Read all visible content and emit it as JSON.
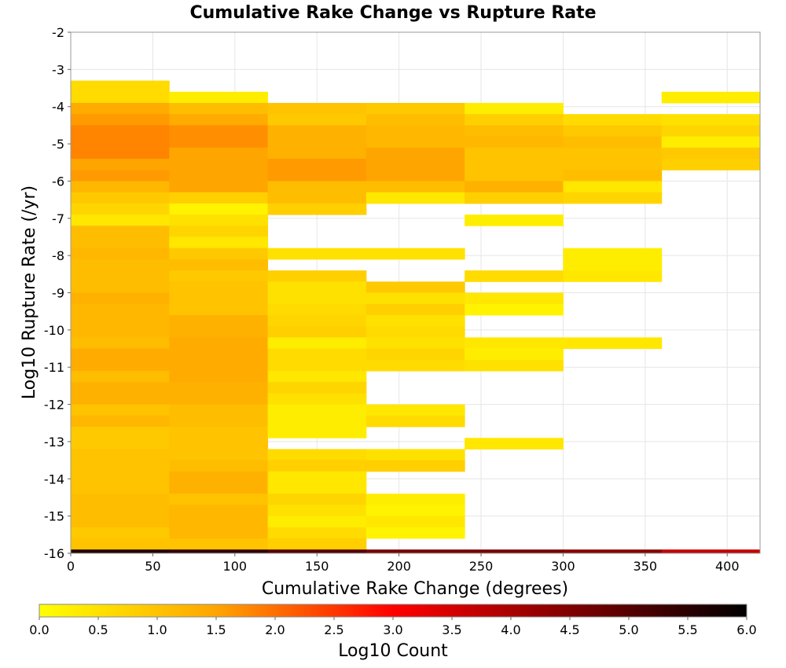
{
  "chart_data": {
    "type": "heatmap",
    "title": "Cumulative Rake Change vs Rupture Rate",
    "xlabel": "Cumulative Rake Change (degrees)",
    "ylabel": "Log10 Rupture Rate (/yr)",
    "xlim": [
      0,
      420
    ],
    "ylim": [
      -16,
      -2
    ],
    "x_ticks": [
      "0",
      "50",
      "100",
      "150",
      "200",
      "250",
      "300",
      "350",
      "400"
    ],
    "y_ticks": [
      "-2",
      "-3",
      "-4",
      "-5",
      "-6",
      "-7",
      "-8",
      "-9",
      "-10",
      "-11",
      "-12",
      "-13",
      "-14",
      "-15",
      "-16"
    ],
    "grid": true,
    "x_bin_width": 60,
    "y_bin_height": 0.3,
    "colorbar": {
      "label": "Log10 Count",
      "range": [
        0,
        6
      ],
      "ticks": [
        "0.0",
        "0.5",
        "1.0",
        "1.5",
        "2.0",
        "2.5",
        "3.0",
        "3.5",
        "4.0",
        "4.5",
        "5.0",
        "5.5",
        "6.0"
      ],
      "colors": [
        "#ffff00",
        "#ffa500",
        "#ff0000",
        "#000000"
      ]
    },
    "columns": [
      {
        "x0": 0,
        "cells": [
          [
            -3.9,
            -3.3,
            0.6
          ],
          [
            -4.2,
            -3.9,
            1.4
          ],
          [
            -4.5,
            -4.2,
            1.6
          ],
          [
            -5.4,
            -4.5,
            1.8
          ],
          [
            -5.7,
            -5.4,
            1.5
          ],
          [
            -6.0,
            -5.7,
            1.6
          ],
          [
            -6.3,
            -6.0,
            1.2
          ],
          [
            -6.6,
            -6.3,
            0.9
          ],
          [
            -6.9,
            -6.6,
            0.7
          ],
          [
            -7.2,
            -6.9,
            0.4
          ],
          [
            -7.8,
            -7.2,
            1.1
          ],
          [
            -8.1,
            -7.8,
            1.2
          ],
          [
            -9.0,
            -8.1,
            1.1
          ],
          [
            -9.3,
            -9.0,
            1.3
          ],
          [
            -10.2,
            -9.3,
            1.2
          ],
          [
            -10.5,
            -10.2,
            1.1
          ],
          [
            -11.1,
            -10.5,
            1.4
          ],
          [
            -11.4,
            -11.1,
            1.1
          ],
          [
            -12.0,
            -11.4,
            1.3
          ],
          [
            -12.3,
            -12.0,
            1.0
          ],
          [
            -12.6,
            -12.3,
            1.2
          ],
          [
            -13.2,
            -12.6,
            0.9
          ],
          [
            -14.4,
            -13.2,
            1.0
          ],
          [
            -15.3,
            -14.4,
            1.1
          ],
          [
            -15.6,
            -15.3,
            0.9
          ],
          [
            -15.9,
            -15.6,
            1.0
          ],
          [
            -16.0,
            -15.9,
            5.6
          ]
        ]
      },
      {
        "x0": 60,
        "cells": [
          [
            -3.9,
            -3.6,
            0.3
          ],
          [
            -4.2,
            -3.9,
            1.1
          ],
          [
            -4.5,
            -4.2,
            1.4
          ],
          [
            -5.1,
            -4.5,
            1.7
          ],
          [
            -6.3,
            -5.1,
            1.5
          ],
          [
            -6.6,
            -6.3,
            0.8
          ],
          [
            -6.9,
            -6.6,
            0.2
          ],
          [
            -7.2,
            -6.9,
            0.5
          ],
          [
            -7.5,
            -7.2,
            0.7
          ],
          [
            -7.8,
            -7.5,
            0.4
          ],
          [
            -8.1,
            -7.8,
            0.9
          ],
          [
            -8.4,
            -8.1,
            1.1
          ],
          [
            -8.7,
            -8.4,
            0.9
          ],
          [
            -9.6,
            -8.7,
            1.0
          ],
          [
            -10.2,
            -9.6,
            1.3
          ],
          [
            -11.4,
            -10.2,
            1.4
          ],
          [
            -12.0,
            -11.4,
            1.3
          ],
          [
            -12.6,
            -12.0,
            1.1
          ],
          [
            -13.5,
            -12.6,
            1.0
          ],
          [
            -13.8,
            -13.5,
            1.1
          ],
          [
            -14.4,
            -13.8,
            1.3
          ],
          [
            -14.7,
            -14.4,
            1.0
          ],
          [
            -15.6,
            -14.7,
            1.2
          ],
          [
            -15.9,
            -15.6,
            1.0
          ],
          [
            -16.0,
            -15.9,
            5.4
          ]
        ]
      },
      {
        "x0": 120,
        "cells": [
          [
            -4.2,
            -3.9,
            1.0
          ],
          [
            -4.5,
            -4.2,
            0.9
          ],
          [
            -5.4,
            -4.5,
            1.3
          ],
          [
            -6.0,
            -5.4,
            1.6
          ],
          [
            -6.6,
            -6.0,
            1.1
          ],
          [
            -6.9,
            -6.6,
            0.8
          ],
          [
            -8.1,
            -7.8,
            0.5
          ],
          [
            -8.7,
            -8.4,
            0.8
          ],
          [
            -9.3,
            -8.7,
            0.5
          ],
          [
            -9.6,
            -9.3,
            0.6
          ],
          [
            -9.9,
            -9.6,
            0.7
          ],
          [
            -10.2,
            -9.9,
            0.8
          ],
          [
            -10.5,
            -10.2,
            0.3
          ],
          [
            -11.1,
            -10.5,
            0.6
          ],
          [
            -11.4,
            -11.1,
            0.4
          ],
          [
            -11.7,
            -11.4,
            0.7
          ],
          [
            -12.0,
            -11.7,
            0.5
          ],
          [
            -12.9,
            -12.0,
            0.3
          ],
          [
            -13.5,
            -13.2,
            0.6
          ],
          [
            -13.8,
            -13.5,
            0.8
          ],
          [
            -14.4,
            -13.8,
            0.4
          ],
          [
            -14.7,
            -14.4,
            0.7
          ],
          [
            -15.0,
            -14.7,
            0.5
          ],
          [
            -15.3,
            -15.0,
            0.3
          ],
          [
            -15.6,
            -15.3,
            0.6
          ],
          [
            -15.9,
            -15.6,
            0.8
          ],
          [
            -16.0,
            -15.9,
            5.0
          ]
        ]
      },
      {
        "x0": 180,
        "cells": [
          [
            -4.2,
            -3.9,
            0.9
          ],
          [
            -4.5,
            -4.2,
            1.1
          ],
          [
            -5.1,
            -4.5,
            1.2
          ],
          [
            -6.0,
            -5.1,
            1.5
          ],
          [
            -6.3,
            -6.0,
            1.1
          ],
          [
            -6.6,
            -6.3,
            0.4
          ],
          [
            -8.1,
            -7.8,
            0.5
          ],
          [
            -9.0,
            -8.7,
            0.9
          ],
          [
            -9.3,
            -9.0,
            0.5
          ],
          [
            -9.6,
            -9.3,
            0.8
          ],
          [
            -9.9,
            -9.6,
            0.5
          ],
          [
            -10.2,
            -9.9,
            0.6
          ],
          [
            -10.5,
            -10.2,
            0.5
          ],
          [
            -10.8,
            -10.5,
            0.7
          ],
          [
            -11.1,
            -10.8,
            0.6
          ],
          [
            -12.3,
            -12.0,
            0.4
          ],
          [
            -12.6,
            -12.3,
            0.6
          ],
          [
            -13.5,
            -13.2,
            0.5
          ],
          [
            -13.8,
            -13.5,
            0.8
          ],
          [
            -14.7,
            -14.4,
            0.3
          ],
          [
            -15.0,
            -14.7,
            0.2
          ],
          [
            -15.3,
            -15.0,
            0.4
          ],
          [
            -15.6,
            -15.3,
            0.2
          ],
          [
            -16.0,
            -15.9,
            4.6
          ]
        ]
      },
      {
        "x0": 240,
        "cells": [
          [
            -4.2,
            -3.9,
            0.3
          ],
          [
            -4.5,
            -4.2,
            0.8
          ],
          [
            -4.8,
            -4.5,
            1.1
          ],
          [
            -5.1,
            -4.8,
            1.2
          ],
          [
            -6.0,
            -5.1,
            1.0
          ],
          [
            -6.3,
            -6.0,
            1.3
          ],
          [
            -6.6,
            -6.3,
            0.8
          ],
          [
            -7.2,
            -6.9,
            0.3
          ],
          [
            -8.7,
            -8.4,
            0.6
          ],
          [
            -9.3,
            -9.0,
            0.4
          ],
          [
            -9.6,
            -9.3,
            0.2
          ],
          [
            -10.5,
            -10.2,
            0.4
          ],
          [
            -10.8,
            -10.5,
            0.3
          ],
          [
            -11.1,
            -10.8,
            0.5
          ],
          [
            -13.2,
            -12.9,
            0.4
          ],
          [
            -16.0,
            -15.9,
            4.6
          ]
        ]
      },
      {
        "x0": 300,
        "cells": [
          [
            -4.5,
            -4.2,
            0.6
          ],
          [
            -4.8,
            -4.5,
            0.9
          ],
          [
            -5.1,
            -4.8,
            1.1
          ],
          [
            -5.7,
            -5.1,
            1.0
          ],
          [
            -6.0,
            -5.7,
            1.1
          ],
          [
            -6.3,
            -6.0,
            0.4
          ],
          [
            -6.6,
            -6.3,
            0.7
          ],
          [
            -8.4,
            -7.8,
            0.3
          ],
          [
            -8.7,
            -8.4,
            0.4
          ],
          [
            -10.5,
            -10.2,
            0.4
          ],
          [
            -16.0,
            -15.9,
            4.4
          ]
        ]
      },
      {
        "x0": 360,
        "cells": [
          [
            -3.9,
            -3.6,
            0.3
          ],
          [
            -4.5,
            -4.2,
            0.5
          ],
          [
            -4.8,
            -4.5,
            0.7
          ],
          [
            -5.1,
            -4.8,
            0.3
          ],
          [
            -5.4,
            -5.1,
            0.9
          ],
          [
            -5.7,
            -5.4,
            0.8
          ],
          [
            -16.0,
            -15.9,
            3.7
          ]
        ]
      }
    ]
  }
}
